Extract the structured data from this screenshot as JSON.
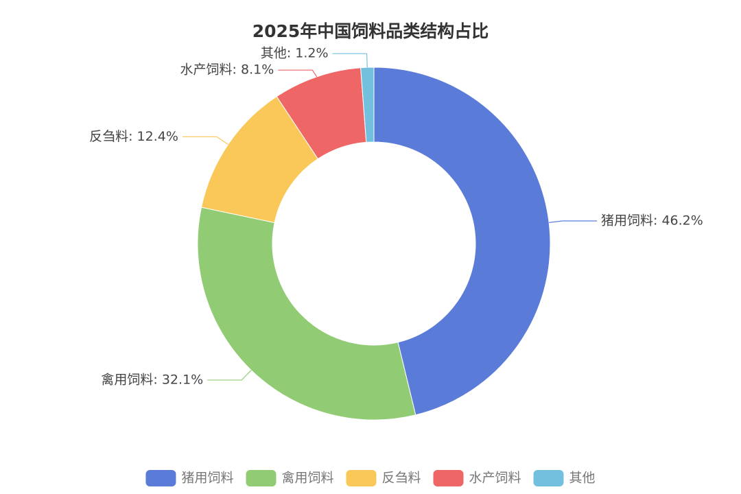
{
  "chart_data": {
    "type": "pie",
    "donut": true,
    "title": "2025年中国饲料品类结构占比",
    "categories": [
      "猪用饲料",
      "禽用饲料",
      "反刍料",
      "水产饲料",
      "其他"
    ],
    "values": [
      46.2,
      32.1,
      12.4,
      8.1,
      1.2
    ],
    "value_labels": [
      "猪用饲料: 46.2%",
      "禽用饲料: 32.1%",
      "反刍料: 12.4%",
      "水产饲料: 8.1%",
      "其他: 1.2%"
    ],
    "colors": [
      "#5b7bd9",
      "#91cc75",
      "#fac858",
      "#ee6666",
      "#73c0de"
    ],
    "legend": "bottom"
  }
}
